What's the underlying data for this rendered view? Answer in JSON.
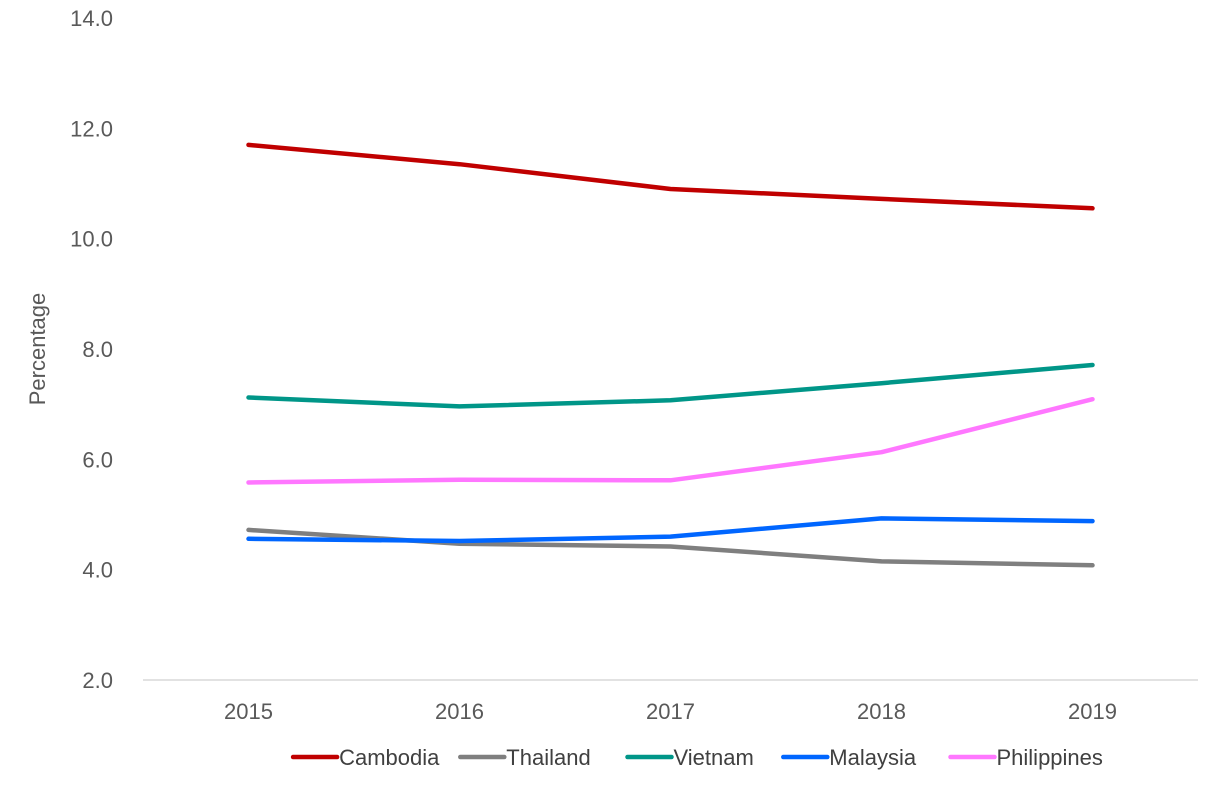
{
  "chart_data": {
    "type": "line",
    "title": "",
    "xlabel": "",
    "ylabel": "Percentage",
    "categories": [
      "2015",
      "2016",
      "2017",
      "2018",
      "2019"
    ],
    "ylim": [
      2.0,
      14.0
    ],
    "yticks": [
      "2.0",
      "4.0",
      "6.0",
      "8.0",
      "10.0",
      "12.0",
      "14.0"
    ],
    "grid": false,
    "legend_position": "bottom",
    "series": [
      {
        "name": "Cambodia",
        "color": "#C00000",
        "values": [
          11.7,
          11.35,
          10.9,
          10.72,
          10.55
        ]
      },
      {
        "name": "Thailand",
        "color": "#7F7F7F",
        "values": [
          4.72,
          4.47,
          4.42,
          4.15,
          4.08
        ]
      },
      {
        "name": "Vietnam",
        "color": "#009688",
        "values": [
          7.12,
          6.96,
          7.07,
          7.38,
          7.71
        ]
      },
      {
        "name": "Malaysia",
        "color": "#0066FF",
        "values": [
          4.56,
          4.52,
          4.6,
          4.93,
          4.88
        ]
      },
      {
        "name": "Philippines",
        "color": "#FF77FF",
        "values": [
          5.58,
          5.63,
          5.62,
          6.13,
          7.09
        ]
      }
    ]
  }
}
